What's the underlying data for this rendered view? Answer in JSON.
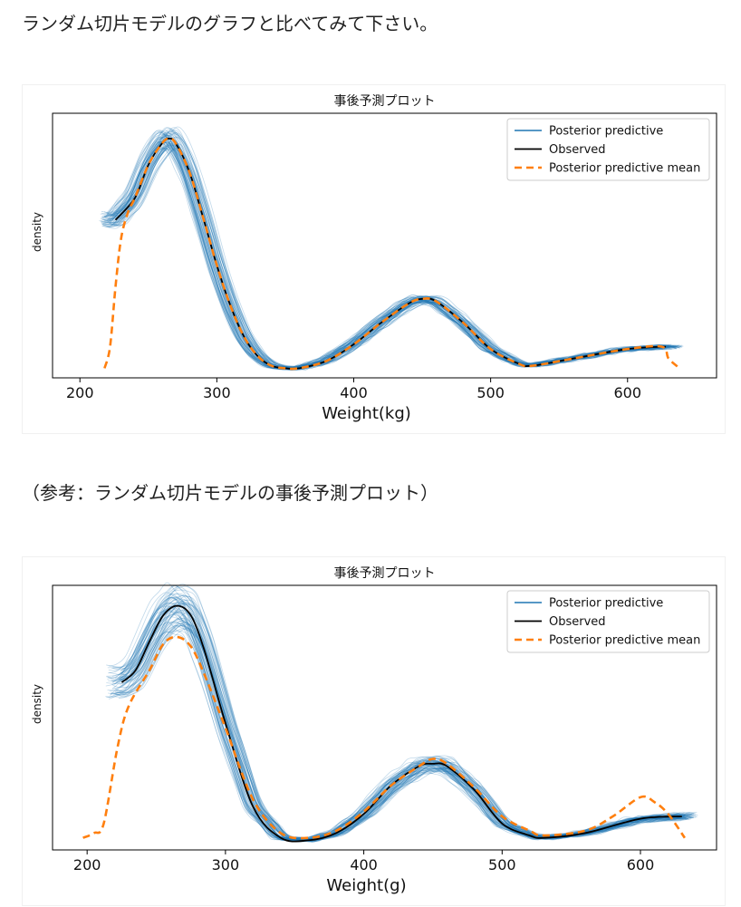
{
  "intro_text": "ランダム切片モデルのグラフと比べてみて下さい。",
  "reference_text": "（参考：ランダム切片モデルの事後予測プロット）",
  "colors": {
    "predictive": "#1f77b4",
    "observed": "#000000",
    "mean": "#ff7f0e"
  },
  "chart_data": [
    {
      "type": "line",
      "title": "事後予測プロット",
      "xlabel": "Weight(kg)",
      "ylabel": "density",
      "xlim": [
        180,
        665
      ],
      "x_ticks": [
        200,
        300,
        400,
        500,
        600
      ],
      "ylim": [
        0,
        1.0
      ],
      "legend_position": "top-right",
      "legend": [
        "Posterior predictive",
        "Observed",
        "Posterior predictive mean"
      ],
      "posterior_spread": 0.05,
      "series": [
        {
          "name": "Observed",
          "x": [
            226,
            240,
            250,
            260,
            265,
            270,
            280,
            290,
            300,
            310,
            320,
            330,
            340,
            350,
            360,
            380,
            400,
            420,
            440,
            450,
            460,
            480,
            500,
            520,
            530,
            560,
            600,
            628
          ],
          "y": [
            0.63,
            0.72,
            0.86,
            0.95,
            0.97,
            0.95,
            0.83,
            0.64,
            0.44,
            0.27,
            0.14,
            0.06,
            0.02,
            0.01,
            0.01,
            0.04,
            0.11,
            0.2,
            0.28,
            0.3,
            0.29,
            0.2,
            0.09,
            0.03,
            0.02,
            0.05,
            0.09,
            0.1
          ]
        },
        {
          "name": "Posterior predictive mean",
          "x": [
            218,
            222,
            226,
            230,
            235,
            240,
            250,
            260,
            265,
            270,
            280,
            290,
            300,
            310,
            320,
            330,
            340,
            350,
            360,
            380,
            400,
            420,
            440,
            450,
            460,
            480,
            500,
            520,
            530,
            560,
            600,
            625,
            630,
            638
          ],
          "y": [
            0.01,
            0.1,
            0.35,
            0.55,
            0.66,
            0.72,
            0.86,
            0.95,
            0.97,
            0.95,
            0.83,
            0.64,
            0.44,
            0.27,
            0.14,
            0.06,
            0.02,
            0.01,
            0.01,
            0.04,
            0.11,
            0.2,
            0.28,
            0.3,
            0.29,
            0.2,
            0.09,
            0.03,
            0.02,
            0.05,
            0.09,
            0.1,
            0.05,
            0.01
          ]
        }
      ]
    },
    {
      "type": "line",
      "title": "事後予測プロット",
      "xlabel": "Weight(g)",
      "ylabel": "density",
      "xlim": [
        175,
        655
      ],
      "x_ticks": [
        200,
        300,
        400,
        500,
        600
      ],
      "ylim": [
        0,
        1.0
      ],
      "legend_position": "top-right",
      "legend": [
        "Posterior predictive",
        "Observed",
        "Posterior predictive mean"
      ],
      "posterior_spread": 0.1,
      "series": [
        {
          "name": "Observed",
          "x": [
            225,
            235,
            245,
            255,
            265,
            275,
            285,
            300,
            320,
            340,
            360,
            380,
            400,
            420,
            440,
            450,
            460,
            480,
            500,
            520,
            530,
            560,
            600,
            630
          ],
          "y": [
            0.67,
            0.72,
            0.84,
            0.95,
            0.99,
            0.95,
            0.8,
            0.5,
            0.15,
            0.02,
            0.01,
            0.04,
            0.12,
            0.24,
            0.32,
            0.33,
            0.32,
            0.22,
            0.08,
            0.03,
            0.02,
            0.04,
            0.1,
            0.11
          ]
        },
        {
          "name": "Posterior predictive mean",
          "x": [
            197,
            205,
            212,
            222,
            230,
            245,
            255,
            265,
            275,
            285,
            300,
            320,
            340,
            360,
            380,
            400,
            420,
            440,
            450,
            460,
            480,
            500,
            520,
            530,
            560,
            580,
            600,
            610,
            620,
            632
          ],
          "y": [
            0.02,
            0.04,
            0.08,
            0.4,
            0.57,
            0.72,
            0.83,
            0.86,
            0.82,
            0.7,
            0.48,
            0.18,
            0.04,
            0.02,
            0.05,
            0.13,
            0.24,
            0.32,
            0.35,
            0.33,
            0.23,
            0.11,
            0.05,
            0.03,
            0.05,
            0.11,
            0.19,
            0.17,
            0.12,
            0.02
          ]
        }
      ]
    }
  ]
}
